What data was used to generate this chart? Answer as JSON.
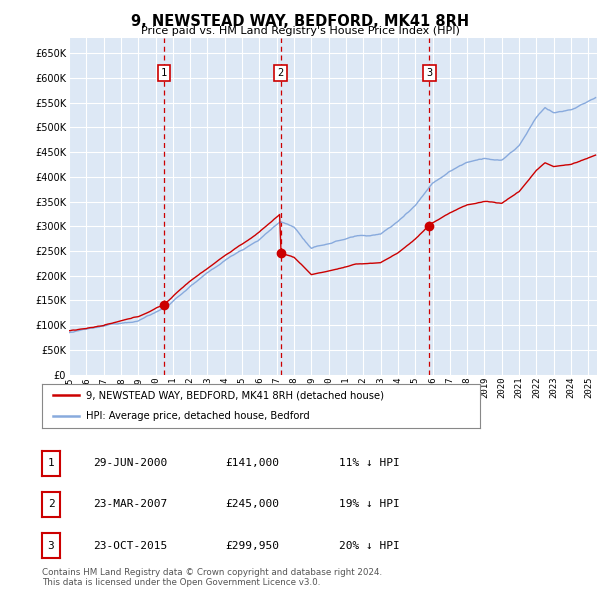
{
  "title": "9, NEWSTEAD WAY, BEDFORD, MK41 8RH",
  "subtitle": "Price paid vs. HM Land Registry's House Price Index (HPI)",
  "ylim": [
    0,
    680000
  ],
  "yticks": [
    0,
    50000,
    100000,
    150000,
    200000,
    250000,
    300000,
    350000,
    400000,
    450000,
    500000,
    550000,
    600000,
    650000
  ],
  "purchases": [
    {
      "date_num": 2000.49,
      "price": 141000,
      "label": "1"
    },
    {
      "date_num": 2007.22,
      "price": 245000,
      "label": "2"
    },
    {
      "date_num": 2015.81,
      "price": 299950,
      "label": "3"
    }
  ],
  "vline_dates": [
    2000.49,
    2007.22,
    2015.81
  ],
  "vline_color": "#cc0000",
  "hpi_color": "#88aadd",
  "price_color": "#cc0000",
  "grid_color": "#cccccc",
  "chart_bg": "#dde8f5",
  "legend_items": [
    "9, NEWSTEAD WAY, BEDFORD, MK41 8RH (detached house)",
    "HPI: Average price, detached house, Bedford"
  ],
  "table_rows": [
    {
      "num": "1",
      "date": "29-JUN-2000",
      "price": "£141,000",
      "hpi": "11% ↓ HPI"
    },
    {
      "num": "2",
      "date": "23-MAR-2007",
      "price": "£245,000",
      "hpi": "19% ↓ HPI"
    },
    {
      "num": "3",
      "date": "23-OCT-2015",
      "price": "£299,950",
      "hpi": "20% ↓ HPI"
    }
  ],
  "footer": "Contains HM Land Registry data © Crown copyright and database right 2024.\nThis data is licensed under the Open Government Licence v3.0.",
  "xlim_start": 1995.0,
  "xlim_end": 2025.5
}
